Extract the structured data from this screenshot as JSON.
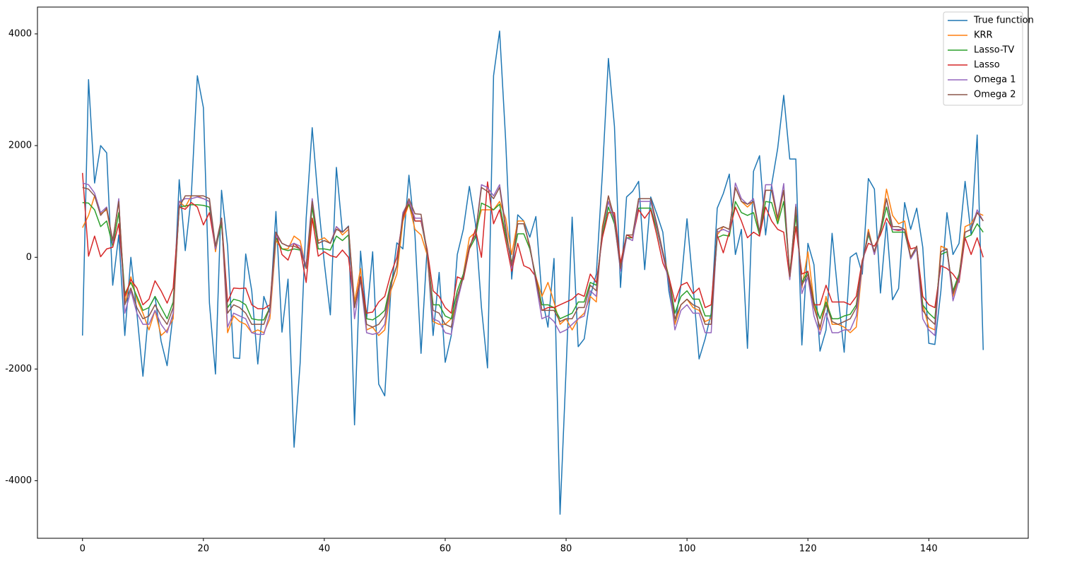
{
  "chart_data": {
    "type": "line",
    "x": [
      0,
      1,
      2,
      3,
      4,
      5,
      6,
      7,
      8,
      9,
      10,
      11,
      12,
      13,
      14,
      15,
      16,
      17,
      18,
      19,
      20,
      21,
      22,
      23,
      24,
      25,
      26,
      27,
      28,
      29,
      30,
      31,
      32,
      33,
      34,
      35,
      36,
      37,
      38,
      39,
      40,
      41,
      42,
      43,
      44,
      45,
      46,
      47,
      48,
      49,
      50,
      51,
      52,
      53,
      54,
      55,
      56,
      57,
      58,
      59,
      60,
      61,
      62,
      63,
      64,
      65,
      66,
      67,
      68,
      69,
      70,
      71,
      72,
      73,
      74,
      75,
      76,
      77,
      78,
      79,
      80,
      81,
      82,
      83,
      84,
      85,
      86,
      87,
      88,
      89,
      90,
      91,
      92,
      93,
      94,
      95,
      96,
      97,
      98,
      99,
      100,
      101,
      102,
      103,
      104,
      105,
      106,
      107,
      108,
      109,
      110,
      111,
      112,
      113,
      114,
      115,
      116,
      117,
      118,
      119,
      120,
      121,
      122,
      123,
      124,
      125,
      126,
      127,
      128,
      129,
      130,
      131,
      132,
      133,
      134,
      135,
      136,
      137,
      138,
      139,
      140,
      141,
      142,
      143,
      144,
      145,
      146,
      147,
      148,
      149
    ],
    "series": [
      {
        "name": "True function",
        "color": "#1f77b4",
        "values": [
          -1400,
          3180,
          1330,
          2000,
          1870,
          -500,
          400,
          -1400,
          0,
          -1000,
          -2130,
          -900,
          -700,
          -1500,
          -1940,
          -1000,
          1390,
          120,
          1100,
          3250,
          2680,
          -820,
          -2090,
          1200,
          200,
          -1800,
          -1810,
          60,
          -600,
          -1910,
          -700,
          -1000,
          820,
          -1340,
          -390,
          -3400,
          -1900,
          700,
          2320,
          1000,
          -100,
          -1030,
          1610,
          450,
          560,
          -3000,
          110,
          -1100,
          100,
          -2270,
          -2480,
          -600,
          260,
          150,
          1470,
          400,
          -1720,
          150,
          -1400,
          -270,
          -1880,
          -1400,
          50,
          500,
          1270,
          600,
          -900,
          -1980,
          3250,
          4050,
          2100,
          -390,
          760,
          650,
          360,
          730,
          -700,
          -1250,
          -20,
          -4600,
          -2000,
          720,
          -1600,
          -1460,
          -700,
          -300,
          1500,
          3560,
          2340,
          -540,
          1080,
          1180,
          1360,
          -220,
          1080,
          780,
          450,
          -600,
          -1200,
          -500,
          690,
          -500,
          -1820,
          -1460,
          -1000,
          880,
          1140,
          1490,
          50,
          500,
          -1630,
          1540,
          1820,
          400,
          1300,
          1950,
          2900,
          1760,
          1760,
          -1570,
          250,
          -130,
          -1680,
          -1300,
          430,
          -700,
          -1700,
          0,
          80,
          -300,
          1410,
          1220,
          -640,
          620,
          -760,
          -560,
          980,
          500,
          880,
          180,
          -1540,
          -1560,
          -600,
          800,
          50,
          250,
          1360,
          400,
          2190,
          -1660
        ]
      },
      {
        "name": "KRR",
        "color": "#ff7f0e",
        "values": [
          530,
          750,
          1100,
          780,
          850,
          250,
          1000,
          -800,
          -350,
          -750,
          -1000,
          -1300,
          -950,
          -1400,
          -1300,
          -1100,
          1000,
          900,
          1100,
          1100,
          1050,
          1000,
          100,
          700,
          -1350,
          -1050,
          -1150,
          -1200,
          -1350,
          -1300,
          -1350,
          -1100,
          300,
          150,
          150,
          380,
          300,
          -200,
          700,
          300,
          350,
          250,
          550,
          400,
          500,
          -800,
          -200,
          -1300,
          -1250,
          -1400,
          -1300,
          -600,
          -300,
          650,
          950,
          500,
          400,
          50,
          -1150,
          -1200,
          -1200,
          -1100,
          -800,
          -300,
          350,
          450,
          850,
          850,
          850,
          1000,
          700,
          50,
          650,
          650,
          150,
          -350,
          -700,
          -450,
          -800,
          -1200,
          -1100,
          -1300,
          -1100,
          -1000,
          -700,
          -800,
          550,
          1100,
          600,
          -200,
          350,
          350,
          1050,
          1050,
          1050,
          550,
          100,
          -350,
          -1200,
          -850,
          -750,
          -900,
          -950,
          -1150,
          -1100,
          400,
          550,
          500,
          1250,
          1000,
          900,
          1000,
          400,
          1200,
          1200,
          650,
          1200,
          -300,
          850,
          -550,
          100,
          -800,
          -1300,
          -700,
          -1200,
          -1200,
          -1250,
          -1350,
          -1250,
          -150,
          500,
          50,
          450,
          1220,
          750,
          600,
          650,
          0,
          200,
          -850,
          -1250,
          -1300,
          200,
          150,
          -700,
          -350,
          550,
          600,
          800,
          750
        ]
      },
      {
        "name": "Lasso-TV",
        "color": "#2ca02c",
        "values": [
          980,
          970,
          850,
          550,
          650,
          200,
          800,
          -650,
          -450,
          -700,
          -950,
          -900,
          -700,
          -900,
          -1100,
          -800,
          900,
          920,
          940,
          940,
          930,
          900,
          150,
          600,
          -900,
          -750,
          -780,
          -850,
          -1100,
          -1120,
          -1120,
          -900,
          350,
          150,
          120,
          150,
          130,
          -150,
          900,
          150,
          150,
          130,
          380,
          300,
          400,
          -900,
          -350,
          -1100,
          -1120,
          -1050,
          -950,
          -450,
          -150,
          750,
          950,
          650,
          650,
          100,
          -850,
          -850,
          -1050,
          -1100,
          -600,
          -300,
          150,
          350,
          970,
          920,
          850,
          950,
          400,
          -100,
          420,
          420,
          150,
          -350,
          -850,
          -850,
          -900,
          -1100,
          -1050,
          -1000,
          -800,
          -800,
          -450,
          -500,
          400,
          900,
          600,
          -150,
          350,
          350,
          880,
          880,
          880,
          500,
          50,
          -350,
          -1000,
          -700,
          -600,
          -750,
          -750,
          -1050,
          -1050,
          350,
          400,
          380,
          1000,
          800,
          750,
          800,
          400,
          1000,
          980,
          600,
          1000,
          -300,
          750,
          -450,
          -250,
          -800,
          -1100,
          -800,
          -1100,
          -1100,
          -1050,
          -1020,
          -850,
          -100,
          400,
          100,
          450,
          900,
          450,
          450,
          450,
          0,
          150,
          -850,
          -1000,
          -1100,
          50,
          100,
          -600,
          -300,
          350,
          400,
          600,
          450
        ]
      },
      {
        "name": "Lasso",
        "color": "#d62728",
        "values": [
          1510,
          20,
          380,
          10,
          150,
          180,
          600,
          -700,
          -400,
          -550,
          -850,
          -750,
          -420,
          -600,
          -820,
          -550,
          900,
          860,
          980,
          900,
          580,
          800,
          150,
          700,
          -800,
          -550,
          -560,
          -550,
          -850,
          -920,
          -920,
          -850,
          450,
          50,
          -50,
          250,
          150,
          -450,
          700,
          20,
          100,
          30,
          0,
          130,
          0,
          -900,
          -350,
          -1000,
          -980,
          -800,
          -700,
          -300,
          0,
          700,
          1000,
          650,
          650,
          150,
          -600,
          -700,
          -900,
          -1000,
          -350,
          -400,
          150,
          500,
          0,
          1350,
          600,
          850,
          300,
          -250,
          250,
          -150,
          -200,
          -350,
          -950,
          -900,
          -900,
          -850,
          -800,
          -750,
          -650,
          -700,
          -300,
          -450,
          350,
          800,
          800,
          -100,
          400,
          350,
          850,
          700,
          850,
          400,
          -100,
          -350,
          -800,
          -500,
          -450,
          -650,
          -550,
          -900,
          -850,
          400,
          80,
          450,
          900,
          650,
          350,
          450,
          380,
          900,
          650,
          500,
          450,
          -380,
          550,
          -300,
          -250,
          -850,
          -850,
          -500,
          -800,
          -800,
          -800,
          -850,
          -700,
          -50,
          250,
          200,
          400,
          700,
          500,
          480,
          500,
          150,
          180,
          -700,
          -850,
          -900,
          -150,
          -200,
          -300,
          -450,
          350,
          50,
          350,
          0
        ]
      },
      {
        "name": "Omega 1",
        "color": "#9467bd",
        "values": [
          1330,
          1300,
          1150,
          800,
          900,
          250,
          1050,
          -1000,
          -600,
          -1000,
          -1200,
          -1200,
          -950,
          -1200,
          -1350,
          -1000,
          1000,
          1050,
          1050,
          1080,
          1050,
          1000,
          150,
          700,
          -1250,
          -1000,
          -1050,
          -1100,
          -1350,
          -1380,
          -1380,
          -1000,
          400,
          250,
          200,
          250,
          200,
          -150,
          1050,
          250,
          300,
          250,
          550,
          450,
          550,
          -1100,
          -400,
          -1350,
          -1380,
          -1350,
          -1200,
          -500,
          -150,
          800,
          1000,
          700,
          700,
          100,
          -1100,
          -1150,
          -1350,
          -1380,
          -800,
          -350,
          200,
          400,
          1300,
          1250,
          1100,
          1300,
          550,
          -200,
          600,
          600,
          200,
          -450,
          -1100,
          -1050,
          -1150,
          -1350,
          -1300,
          -1200,
          -1100,
          -1050,
          -600,
          -700,
          500,
          1000,
          650,
          -250,
          350,
          300,
          1000,
          1000,
          1000,
          550,
          50,
          -450,
          -1300,
          -950,
          -850,
          -1000,
          -1000,
          -1350,
          -1350,
          450,
          500,
          450,
          1330,
          1050,
          950,
          1050,
          450,
          1300,
          1300,
          700,
          1320,
          -400,
          950,
          -650,
          -350,
          -1050,
          -1380,
          -1000,
          -1350,
          -1350,
          -1300,
          -1300,
          -1050,
          -150,
          450,
          50,
          500,
          1050,
          500,
          500,
          500,
          -30,
          150,
          -1100,
          -1300,
          -1400,
          100,
          150,
          -780,
          -400,
          450,
          500,
          850,
          650
        ]
      },
      {
        "name": "Omega 2",
        "color": "#8c564b",
        "values": [
          1250,
          1220,
          1100,
          750,
          880,
          300,
          1000,
          -850,
          -550,
          -900,
          -1100,
          -1050,
          -850,
          -1050,
          -1200,
          -900,
          900,
          1100,
          1100,
          1100,
          1100,
          1050,
          200,
          700,
          -1000,
          -850,
          -900,
          -1000,
          -1200,
          -1200,
          -1200,
          -900,
          450,
          250,
          200,
          200,
          150,
          -200,
          1000,
          250,
          300,
          250,
          500,
          450,
          550,
          -900,
          -400,
          -1200,
          -1250,
          -1200,
          -1050,
          -500,
          -150,
          750,
          1050,
          780,
          770,
          100,
          -950,
          -1000,
          -1200,
          -1250,
          -700,
          -350,
          200,
          400,
          1250,
          1180,
          1050,
          1250,
          500,
          -150,
          600,
          600,
          200,
          -400,
          -950,
          -950,
          -950,
          -1150,
          -1100,
          -1100,
          -900,
          -900,
          -500,
          -600,
          500,
          1100,
          700,
          -200,
          400,
          400,
          1050,
          1050,
          1050,
          600,
          100,
          -400,
          -1100,
          -850,
          -750,
          -850,
          -900,
          -1200,
          -1200,
          500,
          550,
          500,
          1250,
          1000,
          950,
          1000,
          450,
          1200,
          1200,
          700,
          1200,
          -350,
          900,
          -500,
          -300,
          -900,
          -1250,
          -850,
          -1150,
          -1200,
          -1150,
          -1100,
          -900,
          -100,
          450,
          100,
          500,
          1050,
          550,
          550,
          500,
          0,
          200,
          -950,
          -1100,
          -1200,
          100,
          150,
          -650,
          -350,
          450,
          500,
          800,
          650
        ]
      }
    ],
    "xlim": [
      -7.45,
      156.45
    ],
    "ylim": [
      -5030,
      4480
    ],
    "xticks": [
      0,
      20,
      40,
      60,
      80,
      100,
      120,
      140
    ],
    "yticks": [
      -4000,
      -2000,
      0,
      2000,
      4000
    ],
    "grid": false,
    "legend": "upper right"
  }
}
